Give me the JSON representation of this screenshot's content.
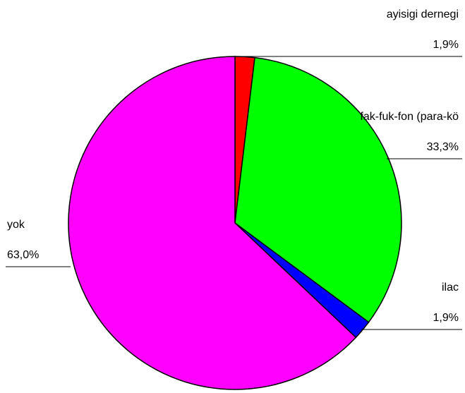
{
  "chart_data": {
    "type": "pie",
    "categories": [
      "ayisigi dernegi",
      "fak-fuk-fon (para-kö",
      "ilac",
      "yok"
    ],
    "values": [
      1.9,
      33.3,
      1.9,
      63.0
    ],
    "value_labels": [
      "1,9%",
      "33,3%",
      "1,9%",
      "63,0%"
    ],
    "colors": [
      "#ff0000",
      "#00ff00",
      "#0000ff",
      "#ff00ff"
    ]
  }
}
